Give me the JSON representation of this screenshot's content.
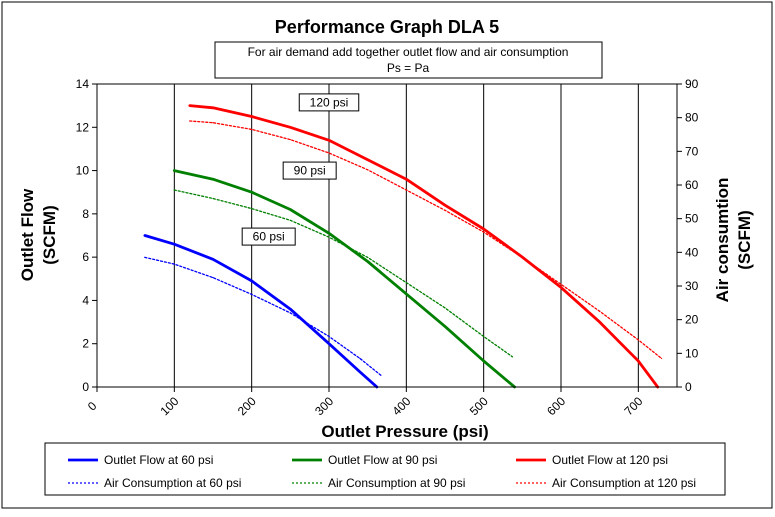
{
  "chart_data": {
    "type": "line",
    "title": "Performance Graph DLA 5",
    "note_lines": [
      "For air demand add together outlet flow and air consumption",
      "Ps = Pa"
    ],
    "xlabel": "Outlet Pressure (psi)",
    "ylabel_lines": [
      "Outlet Flow",
      "(SCFM)"
    ],
    "y2label_lines": [
      "Air consumtion",
      "(SCFM)"
    ],
    "xlim": [
      0,
      750
    ],
    "ylim": [
      0,
      14
    ],
    "y2lim": [
      0,
      90
    ],
    "xticks": [
      0,
      100,
      200,
      300,
      400,
      500,
      600,
      700
    ],
    "xtick_labels": [
      "0",
      "100",
      "200",
      "300",
      "400",
      "500",
      "600",
      "700"
    ],
    "yticks": [
      0,
      2,
      4,
      6,
      8,
      10,
      12,
      14
    ],
    "ytick_labels": [
      "0",
      "2",
      "4",
      "6",
      "8",
      "10",
      "12",
      "14"
    ],
    "y2ticks": [
      0,
      10,
      20,
      30,
      40,
      50,
      60,
      70,
      80,
      90
    ],
    "y2tick_labels": [
      "0",
      "10",
      "20",
      "30",
      "40",
      "50",
      "60",
      "70",
      "80",
      "90"
    ],
    "grid": "vertical",
    "legend_position": "bottom",
    "series": [
      {
        "name": "Outlet Flow at 60 psi",
        "axis": "left",
        "color": "#0000ff",
        "style": "solid",
        "x": [
          62,
          100,
          150,
          200,
          250,
          300,
          340,
          362
        ],
        "y": [
          7.0,
          6.6,
          5.9,
          4.9,
          3.6,
          2.0,
          0.7,
          0.0
        ]
      },
      {
        "name": "Outlet Flow at 90 psi",
        "axis": "left",
        "color": "#008000",
        "style": "solid",
        "x": [
          100,
          150,
          200,
          250,
          300,
          350,
          400,
          450,
          500,
          540
        ],
        "y": [
          10.0,
          9.6,
          9.0,
          8.2,
          7.1,
          5.8,
          4.3,
          2.8,
          1.2,
          0.0
        ]
      },
      {
        "name": "Outlet Flow at 120 psi",
        "axis": "left",
        "color": "#ff0000",
        "style": "solid",
        "x": [
          120,
          150,
          200,
          250,
          300,
          350,
          400,
          450,
          500,
          550,
          600,
          650,
          700,
          725
        ],
        "y": [
          13.0,
          12.9,
          12.5,
          12.0,
          11.4,
          10.5,
          9.6,
          8.4,
          7.3,
          6.0,
          4.6,
          3.0,
          1.2,
          0.0
        ]
      },
      {
        "name": "Air Consumption at 60 psi",
        "axis": "right",
        "color": "#0000ff",
        "style": "dotted",
        "x": [
          62,
          100,
          150,
          200,
          250,
          300,
          340,
          367
        ],
        "y": [
          38.5,
          36.5,
          32.5,
          27.5,
          22.0,
          15.0,
          8.5,
          3.5
        ]
      },
      {
        "name": "Air Consumption at 90 psi",
        "axis": "right",
        "color": "#008000",
        "style": "dotted",
        "x": [
          100,
          150,
          200,
          250,
          300,
          350,
          400,
          450,
          500,
          537
        ],
        "y": [
          58.5,
          56.0,
          53.0,
          49.5,
          44.5,
          38.5,
          31.0,
          23.5,
          15.0,
          9.0
        ]
      },
      {
        "name": "Air Consumption at 120 psi",
        "axis": "right",
        "color": "#ff0000",
        "style": "dotted",
        "x": [
          120,
          150,
          200,
          250,
          300,
          350,
          400,
          450,
          500,
          550,
          600,
          650,
          700,
          730
        ],
        "y": [
          79.0,
          78.5,
          76.5,
          73.5,
          69.5,
          64.5,
          58.5,
          52.5,
          46.0,
          38.5,
          30.5,
          22.5,
          14.0,
          8.5
        ]
      }
    ],
    "annotations": [
      {
        "text": "60 psi",
        "x": 222,
        "y": 6.95
      },
      {
        "text": "90 psi",
        "x": 275,
        "y": 10.0
      },
      {
        "text": "120 psi",
        "x": 300,
        "y": 13.15
      }
    ]
  }
}
